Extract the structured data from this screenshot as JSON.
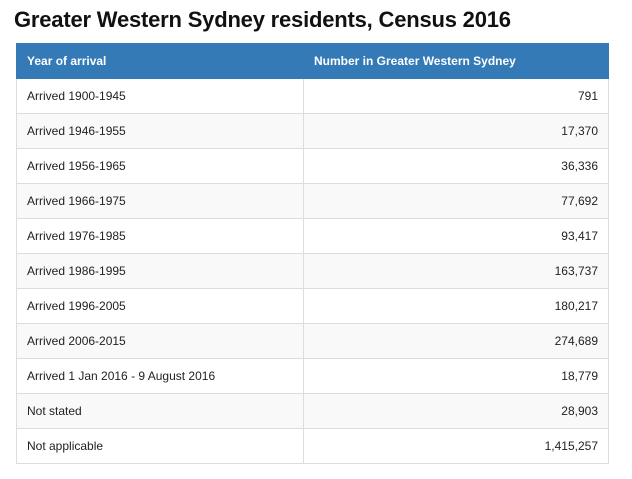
{
  "title": "Greater Western Sydney residents, Census 2016",
  "table": {
    "headers": [
      "Year of arrival",
      "Number in Greater Western Sydney"
    ],
    "rows": [
      [
        "Arrived 1900-1945",
        "791"
      ],
      [
        "Arrived 1946-1955",
        "17,370"
      ],
      [
        "Arrived 1956-1965",
        "36,336"
      ],
      [
        "Arrived 1966-1975",
        "77,692"
      ],
      [
        "Arrived 1976-1985",
        "93,417"
      ],
      [
        "Arrived 1986-1995",
        "163,737"
      ],
      [
        "Arrived 1996-2005",
        "180,217"
      ],
      [
        "Arrived 2006-2015",
        "274,689"
      ],
      [
        "Arrived 1 Jan 2016 - 9 August 2016",
        "18,779"
      ],
      [
        "Not stated",
        "28,903"
      ],
      [
        "Not applicable",
        "1,415,257"
      ]
    ]
  },
  "colors": {
    "header_background": "#337ab7",
    "header_text": "#ffffff",
    "stripe": "#f9f9f9",
    "border": "#dddddd"
  }
}
